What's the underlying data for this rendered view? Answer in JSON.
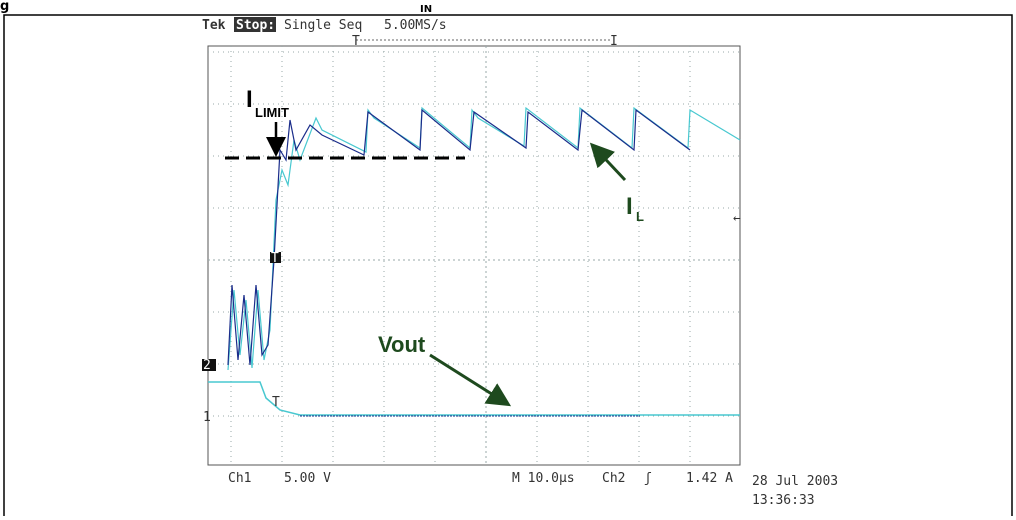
{
  "caption": {
    "lead": "g",
    "subscript": "IN"
  },
  "scope": {
    "brand": "Tek",
    "state": "Stop:",
    "mode": "Single Seq",
    "rate": "5.00MS/s",
    "trigger_bar_label": "T",
    "trigger_bar_end": "I",
    "trigger_marker": "T",
    "ch2_marker": "2",
    "ch1_marker": "1",
    "vout_marker": "T",
    "footer": {
      "ch1": "Ch1",
      "ch1_scale": "5.00 V",
      "timebase": "M 10.0µs",
      "ch2": "Ch2",
      "trigger_slope": "ʃ",
      "trigger_level": "1.42 A",
      "date": "28 Jul 2003",
      "time": "13:36:33"
    }
  },
  "annotations": {
    "ilimit_main": "I",
    "ilimit_sub": "LIMIT",
    "il_main": "I",
    "il_sub": "L",
    "vout": "Vout"
  }
}
